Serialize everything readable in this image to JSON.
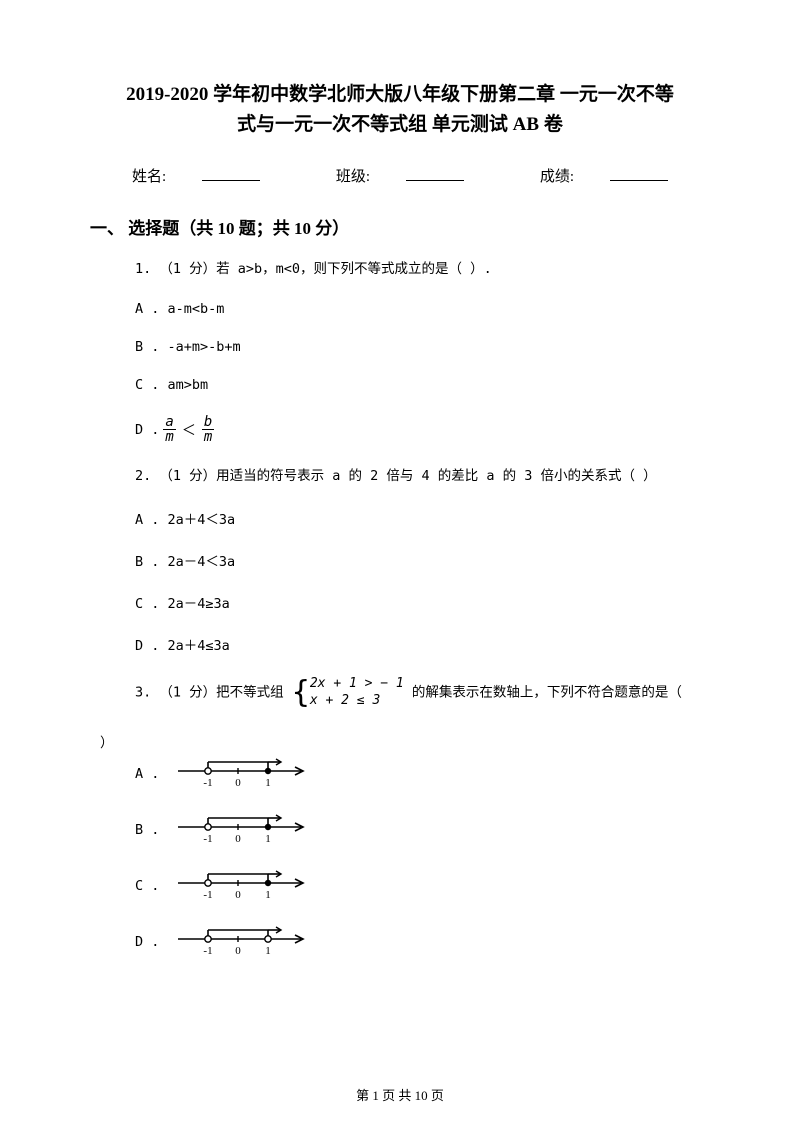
{
  "title_line1": "2019-2020 学年初中数学北师大版八年级下册第二章 一元一次不等",
  "title_line2": "式与一元一次不等式组 单元测试 AB 卷",
  "info": {
    "name_label": "姓名:",
    "class_label": "班级:",
    "score_label": "成绩:"
  },
  "section1": "一、 选择题（共 10 题；共 10 分）",
  "q1": {
    "text": "1. （1 分）若 a>b，m<0，则下列不等式成立的是（    ）.",
    "optA": "A . a-m<b-m",
    "optB": "B . -a+m>-b+m",
    "optC": "C . am>bm",
    "optD_label": "D .",
    "optD_num1": "a",
    "optD_den1": "m",
    "optD_num2": "b",
    "optD_den2": "m"
  },
  "q2": {
    "text": "2. （1 分）用适当的符号表示 a 的 2 倍与 4 的差比 a 的 3 倍小的关系式（    ）",
    "optA": "A . 2a＋4＜3a",
    "optB": "B . 2a－4＜3a",
    "optC": "C . 2a－4≥3a",
    "optD": "D . 2a＋4≤3a"
  },
  "q3": {
    "text_pre": "3. （1 分）把不等式组",
    "sys_l1": "2x + 1 > − 1",
    "sys_l2": "x + 2 ≤ 3",
    "text_post": "的解集表示在数轴上，下列不符合题意的是（",
    "tail": "）",
    "optA": "A .",
    "optB": "B .",
    "optC": "C .",
    "optD": "D ."
  },
  "footer": "第 1 页 共 10 页",
  "nl": {
    "ticks": [
      -1,
      0,
      1
    ],
    "stroke": "#000000",
    "A": {
      "left_open": true,
      "left_at": -1,
      "right_filled": true,
      "right_at": 1
    },
    "B": {
      "left_open": true,
      "left_at": -1,
      "right_filled": true,
      "right_at": 1
    },
    "C": {
      "left_open": true,
      "left_at": -1,
      "right_filled": true,
      "right_at": 1
    },
    "D": {
      "left_open": true,
      "left_at": -1,
      "right_filled": false,
      "right_at": 1
    }
  }
}
